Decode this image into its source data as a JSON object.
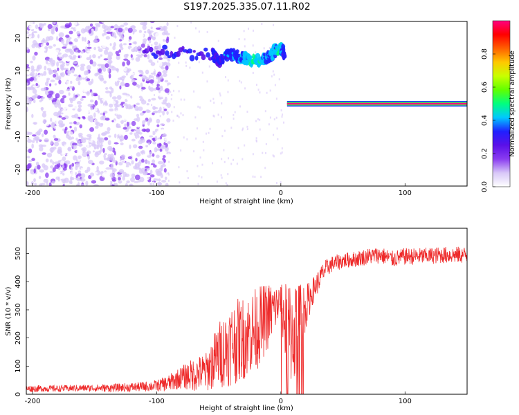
{
  "figure": {
    "title": "S197.2025.335.07.11.R02"
  },
  "chart_data": [
    {
      "type": "heatmap",
      "xlabel": "Height of straight line (km)",
      "ylabel": "Frequency (Hz)",
      "xlim": [
        -205,
        150
      ],
      "ylim": [
        -25,
        25
      ],
      "xticks": [
        -200,
        -100,
        0,
        100
      ],
      "yticks": [
        -20,
        -10,
        0,
        10,
        20
      ],
      "colorbar": {
        "label": "Normalized spectral amplitude",
        "range": [
          0,
          1
        ],
        "ticks": [
          0.0,
          0.2,
          0.4,
          0.6,
          0.8
        ],
        "tick_labels": [
          "0.0",
          "0.2",
          "0.4",
          "0.6",
          "0.8"
        ],
        "colormap": [
          "#ffffff",
          "#d8c8f8",
          "#8a3cf0",
          "#5a10e8",
          "#2020ff",
          "#00c8ff",
          "#00ff80",
          "#60ff00",
          "#c8ff00",
          "#ffc800",
          "#ff6000",
          "#ff0000",
          "#ff0080"
        ]
      },
      "features": {
        "noise_region": {
          "x": [
            -205,
            -105
          ],
          "freq_range": [
            -25,
            25
          ],
          "amplitude": [
            0.02,
            0.15
          ]
        },
        "tonal_band": {
          "x": [
            -110,
            -55,
            -50,
            -40,
            -30,
            -20,
            -10,
            -5,
            0,
            3
          ],
          "freq": [
            16,
            15,
            13,
            15,
            14,
            13,
            14,
            16,
            17,
            15
          ],
          "amplitude": [
            0.25,
            0.3,
            0.3,
            0.35,
            0.4,
            0.45,
            0.35,
            0.4,
            0.45,
            0.3
          ]
        },
        "zero_line": {
          "x": [
            5,
            150
          ],
          "freq": 0,
          "amplitude": 1.0
        }
      }
    },
    {
      "type": "line",
      "xlabel": "Height of straight line (km)",
      "ylabel": "SNR (10 * v/v)",
      "xlim": [
        -205,
        150
      ],
      "ylim": [
        0,
        590
      ],
      "xticks": [
        -200,
        -100,
        0,
        100
      ],
      "yticks": [
        0,
        100,
        200,
        300,
        400,
        500
      ],
      "color": "#ee2a2a",
      "series": [
        {
          "x": [
            -205,
            -180,
            -160,
            -140,
            -120,
            -100,
            -90,
            -80,
            -70,
            -60,
            -50,
            -40,
            -30,
            -20,
            -10,
            0,
            5,
            10,
            15,
            20,
            25,
            30,
            35,
            40,
            50,
            60,
            70,
            80,
            90,
            100,
            110,
            120,
            130,
            140,
            150
          ],
          "y": [
            20,
            20,
            22,
            22,
            25,
            30,
            40,
            60,
            70,
            80,
            140,
            180,
            200,
            230,
            280,
            330,
            220,
            220,
            260,
            310,
            360,
            400,
            440,
            460,
            475,
            480,
            490,
            495,
            480,
            490,
            490,
            492,
            495,
            495,
            495
          ],
          "noise": [
            12,
            12,
            12,
            14,
            16,
            20,
            30,
            40,
            60,
            70,
            120,
            150,
            150,
            150,
            120,
            60,
            180,
            200,
            150,
            80,
            50,
            40,
            35,
            30,
            28,
            28,
            30,
            30,
            30,
            30,
            30,
            30,
            30,
            30,
            30
          ]
        }
      ]
    }
  ]
}
